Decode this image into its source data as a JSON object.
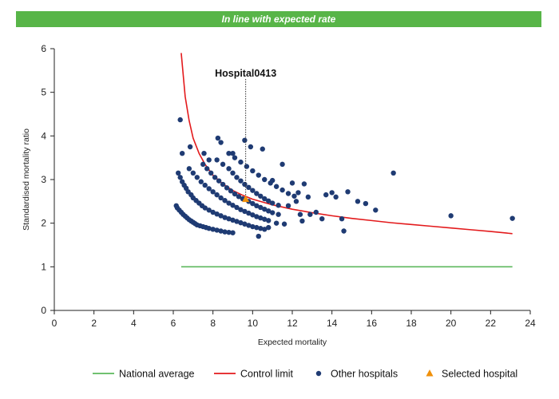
{
  "banner": {
    "text": "In line with expected rate"
  },
  "colors": {
    "banner_bg": "#58b548",
    "national": "#5cb85c",
    "control": "#e31a1c",
    "hospitals": "#1f3b73",
    "selected": "#f0900a",
    "axis": "#222222"
  },
  "chart_data": {
    "type": "scatter",
    "xlabel": "Expected mortality",
    "ylabel": "Standardised mortality ratio",
    "xlim": [
      0,
      24
    ],
    "ylim": [
      0,
      6
    ],
    "xticks": [
      0,
      2,
      4,
      6,
      8,
      10,
      12,
      14,
      16,
      18,
      20,
      22,
      24
    ],
    "yticks": [
      0,
      1,
      2,
      3,
      4,
      5,
      6
    ],
    "grid": false,
    "legend_position": "bottom",
    "annotation": {
      "label": "Hospital0413",
      "x": 9.65,
      "y": 2.55
    },
    "legend": [
      {
        "name": "National average",
        "kind": "line",
        "color_key": "national"
      },
      {
        "name": "Control limit",
        "kind": "line",
        "color_key": "control"
      },
      {
        "name": "Other hospitals",
        "kind": "dot",
        "color_key": "hospitals"
      },
      {
        "name": "Selected hospital",
        "kind": "triangle",
        "color_key": "selected"
      }
    ],
    "series": [
      {
        "name": "National average",
        "kind": "line",
        "x": [
          6.4,
          23.1
        ],
        "y": [
          1.0,
          1.0
        ]
      },
      {
        "name": "Control limit",
        "kind": "line",
        "x": [
          6.4,
          6.6,
          6.8,
          7.0,
          7.3,
          7.6,
          8.0,
          8.5,
          9.0,
          9.5,
          10.0,
          11.0,
          12.0,
          13.0,
          14.0,
          15.0,
          16.0,
          17.0,
          18.0,
          19.0,
          20.0,
          21.0,
          22.0,
          23.1
        ],
        "y": [
          5.9,
          4.9,
          4.35,
          3.95,
          3.6,
          3.35,
          3.1,
          2.9,
          2.75,
          2.64,
          2.55,
          2.42,
          2.32,
          2.24,
          2.17,
          2.11,
          2.06,
          2.01,
          1.97,
          1.93,
          1.89,
          1.85,
          1.81,
          1.76
        ]
      },
      {
        "name": "Other hospitals",
        "kind": "scatter",
        "points": [
          [
            6.15,
            2.4
          ],
          [
            6.2,
            2.35
          ],
          [
            6.3,
            2.3
          ],
          [
            6.4,
            2.25
          ],
          [
            6.5,
            2.2
          ],
          [
            6.6,
            2.16
          ],
          [
            6.7,
            2.12
          ],
          [
            6.8,
            2.08
          ],
          [
            6.9,
            2.05
          ],
          [
            7.0,
            2.02
          ],
          [
            7.1,
            1.99
          ],
          [
            7.2,
            1.96
          ],
          [
            7.35,
            1.94
          ],
          [
            7.5,
            1.92
          ],
          [
            7.65,
            1.9
          ],
          [
            7.8,
            1.88
          ],
          [
            8.0,
            1.86
          ],
          [
            8.2,
            1.84
          ],
          [
            8.4,
            1.82
          ],
          [
            8.6,
            1.8
          ],
          [
            8.8,
            1.79
          ],
          [
            9.0,
            1.78
          ],
          [
            6.25,
            3.15
          ],
          [
            6.35,
            3.05
          ],
          [
            6.45,
            2.95
          ],
          [
            6.55,
            2.87
          ],
          [
            6.65,
            2.8
          ],
          [
            6.75,
            2.72
          ],
          [
            6.9,
            2.65
          ],
          [
            7.0,
            2.58
          ],
          [
            7.15,
            2.52
          ],
          [
            7.3,
            2.46
          ],
          [
            7.45,
            2.4
          ],
          [
            7.6,
            2.35
          ],
          [
            7.8,
            2.3
          ],
          [
            8.0,
            2.25
          ],
          [
            8.2,
            2.21
          ],
          [
            8.4,
            2.17
          ],
          [
            8.6,
            2.13
          ],
          [
            8.8,
            2.1
          ],
          [
            9.0,
            2.07
          ],
          [
            9.2,
            2.04
          ],
          [
            9.4,
            2.01
          ],
          [
            9.6,
            1.98
          ],
          [
            9.8,
            1.95
          ],
          [
            10.0,
            1.92
          ],
          [
            10.2,
            1.9
          ],
          [
            10.4,
            1.88
          ],
          [
            10.6,
            1.86
          ],
          [
            6.8,
            3.25
          ],
          [
            7.0,
            3.15
          ],
          [
            7.2,
            3.05
          ],
          [
            7.4,
            2.95
          ],
          [
            7.6,
            2.87
          ],
          [
            7.8,
            2.79
          ],
          [
            8.0,
            2.72
          ],
          [
            8.2,
            2.65
          ],
          [
            8.4,
            2.58
          ],
          [
            8.6,
            2.52
          ],
          [
            8.8,
            2.46
          ],
          [
            9.0,
            2.41
          ],
          [
            9.2,
            2.36
          ],
          [
            9.4,
            2.31
          ],
          [
            9.6,
            2.27
          ],
          [
            9.8,
            2.23
          ],
          [
            10.0,
            2.19
          ],
          [
            10.2,
            2.15
          ],
          [
            10.4,
            2.12
          ],
          [
            10.6,
            2.09
          ],
          [
            10.8,
            2.06
          ],
          [
            7.5,
            3.35
          ],
          [
            7.7,
            3.25
          ],
          [
            7.9,
            3.15
          ],
          [
            8.1,
            3.05
          ],
          [
            8.3,
            2.97
          ],
          [
            8.5,
            2.89
          ],
          [
            8.7,
            2.81
          ],
          [
            8.9,
            2.74
          ],
          [
            9.1,
            2.67
          ],
          [
            9.3,
            2.61
          ],
          [
            9.5,
            2.56
          ],
          [
            9.8,
            2.5
          ],
          [
            10.0,
            2.45
          ],
          [
            10.2,
            2.4
          ],
          [
            10.4,
            2.36
          ],
          [
            10.6,
            2.32
          ],
          [
            10.8,
            2.28
          ],
          [
            11.0,
            2.24
          ],
          [
            11.3,
            2.2
          ],
          [
            8.2,
            3.45
          ],
          [
            8.5,
            3.35
          ],
          [
            8.8,
            3.25
          ],
          [
            9.0,
            3.15
          ],
          [
            9.2,
            3.05
          ],
          [
            9.4,
            2.97
          ],
          [
            9.6,
            2.89
          ],
          [
            9.8,
            2.82
          ],
          [
            10.0,
            2.75
          ],
          [
            10.2,
            2.68
          ],
          [
            10.4,
            2.62
          ],
          [
            10.6,
            2.56
          ],
          [
            10.8,
            2.51
          ],
          [
            11.0,
            2.46
          ],
          [
            11.3,
            2.41
          ],
          [
            8.8,
            3.6
          ],
          [
            9.1,
            3.5
          ],
          [
            9.4,
            3.4
          ],
          [
            9.7,
            3.3
          ],
          [
            10.0,
            3.2
          ],
          [
            10.3,
            3.1
          ],
          [
            10.6,
            3.0
          ],
          [
            10.9,
            2.92
          ],
          [
            11.2,
            2.84
          ],
          [
            11.5,
            2.76
          ],
          [
            11.8,
            2.68
          ],
          [
            12.1,
            2.62
          ],
          [
            6.35,
            4.37
          ],
          [
            6.45,
            3.6
          ],
          [
            6.85,
            3.75
          ],
          [
            7.55,
            3.6
          ],
          [
            7.8,
            3.45
          ],
          [
            8.25,
            3.95
          ],
          [
            8.4,
            3.85
          ],
          [
            9.0,
            3.6
          ],
          [
            9.6,
            3.9
          ],
          [
            9.9,
            3.75
          ],
          [
            10.5,
            3.7
          ],
          [
            11.0,
            2.98
          ],
          [
            11.5,
            3.35
          ],
          [
            12.0,
            2.92
          ],
          [
            12.3,
            2.7
          ],
          [
            12.6,
            2.9
          ],
          [
            12.4,
            2.2
          ],
          [
            11.8,
            2.4
          ],
          [
            12.8,
            2.6
          ],
          [
            13.2,
            2.25
          ],
          [
            13.7,
            2.65
          ],
          [
            14.0,
            2.7
          ],
          [
            14.2,
            2.6
          ],
          [
            14.5,
            2.1
          ],
          [
            14.8,
            2.72
          ],
          [
            15.3,
            2.5
          ],
          [
            15.7,
            2.45
          ],
          [
            16.2,
            2.3
          ],
          [
            17.1,
            3.15
          ],
          [
            12.2,
            2.5
          ],
          [
            11.2,
            2.0
          ],
          [
            11.6,
            1.98
          ],
          [
            10.3,
            1.7
          ],
          [
            10.8,
            1.9
          ],
          [
            12.9,
            2.2
          ],
          [
            13.5,
            2.1
          ],
          [
            14.6,
            1.82
          ],
          [
            12.5,
            2.05
          ],
          [
            20.0,
            2.17
          ],
          [
            23.1,
            2.11
          ]
        ]
      },
      {
        "name": "Selected hospital",
        "kind": "scatter",
        "points": [
          [
            9.65,
            2.55
          ]
        ]
      }
    ]
  }
}
